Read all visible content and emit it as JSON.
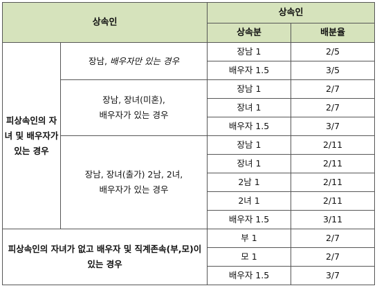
{
  "header": {
    "heir": "상속인",
    "heir_group": "상속인",
    "share": "상속분",
    "ratio": "배분율"
  },
  "groups": {
    "with_children": "피상속인의 자녀 및 배우자가 있는 경우",
    "no_children": "피상속인의 자녀가 없고 배우자 및 직계존속(부,모)이 있는 경우"
  },
  "cases": {
    "case1_plain": "장남, ",
    "case1_italic": "배우자만 있는 경우",
    "case2_line1": "장남, 장녀(미혼),",
    "case2_line2": "배우자가 있는 경우",
    "case3_line1": "장남, 장녀(출가) 2남, 2녀,",
    "case3_line2": "배우자가 있는 경우"
  },
  "rows": [
    {
      "heir": "장남 1",
      "ratio": "2/5"
    },
    {
      "heir": "배우자 1.5",
      "ratio": "3/5"
    },
    {
      "heir": "장남 1",
      "ratio": "2/7"
    },
    {
      "heir": "장녀 1",
      "ratio": "2/7"
    },
    {
      "heir": "배우자 1.5",
      "ratio": "3/7"
    },
    {
      "heir": "장남 1",
      "ratio": "2/11"
    },
    {
      "heir": "장녀 1",
      "ratio": "2/11"
    },
    {
      "heir": "2남 1",
      "ratio": "2/11"
    },
    {
      "heir": "2녀 1",
      "ratio": "2/11"
    },
    {
      "heir": "배우자 1.5",
      "ratio": "3/11"
    },
    {
      "heir": "부 1",
      "ratio": "2/7"
    },
    {
      "heir": "모 1",
      "ratio": "2/7"
    },
    {
      "heir": "배우자 1.5",
      "ratio": "3/7"
    }
  ]
}
